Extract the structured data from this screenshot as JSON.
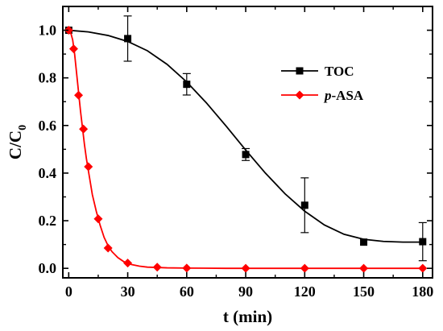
{
  "chart_data": {
    "type": "scatter",
    "xlabel": "t (min)",
    "ylabel": {
      "main": "C/C",
      "sub": "0"
    },
    "xlim": [
      -3,
      185
    ],
    "ylim": [
      -0.04,
      1.1
    ],
    "xticks": [
      0,
      30,
      60,
      90,
      120,
      150,
      180
    ],
    "yticks": [
      0.0,
      0.2,
      0.4,
      0.6,
      0.8,
      1.0
    ],
    "xtick_labels": [
      "0",
      "30",
      "60",
      "90",
      "120",
      "150",
      "180"
    ],
    "ytick_labels": [
      "0.0",
      "0.2",
      "0.4",
      "0.6",
      "0.8",
      "1.0"
    ],
    "legend_position": "top-right",
    "series": [
      {
        "name": "TOC",
        "name_parts": {
          "italic": "",
          "rest": "TOC"
        },
        "marker": "square",
        "color": "#000000",
        "points": [
          {
            "x": 0,
            "y": 1.0,
            "err": 0
          },
          {
            "x": 30,
            "y": 0.965,
            "err": 0.095
          },
          {
            "x": 60,
            "y": 0.773,
            "err": 0.045
          },
          {
            "x": 90,
            "y": 0.478,
            "err": 0.025
          },
          {
            "x": 120,
            "y": 0.265,
            "err": 0.115
          },
          {
            "x": 150,
            "y": 0.11,
            "err": 0
          },
          {
            "x": 180,
            "y": 0.112,
            "err": 0.08
          }
        ],
        "fit_curve": [
          [
            0,
            1.0
          ],
          [
            10,
            0.993
          ],
          [
            20,
            0.978
          ],
          [
            30,
            0.953
          ],
          [
            40,
            0.914
          ],
          [
            50,
            0.857
          ],
          [
            60,
            0.783
          ],
          [
            70,
            0.695
          ],
          [
            80,
            0.598
          ],
          [
            90,
            0.497
          ],
          [
            100,
            0.4
          ],
          [
            110,
            0.313
          ],
          [
            120,
            0.24
          ],
          [
            130,
            0.182
          ],
          [
            140,
            0.143
          ],
          [
            150,
            0.122
          ],
          [
            160,
            0.113
          ],
          [
            170,
            0.11
          ],
          [
            180,
            0.11
          ]
        ]
      },
      {
        "name": "p-ASA",
        "name_parts": {
          "italic": "p",
          "rest": "-ASA"
        },
        "marker": "diamond",
        "color": "#ff0000",
        "points": [
          {
            "x": 0,
            "y": 1.0
          },
          {
            "x": 2.5,
            "y": 0.922
          },
          {
            "x": 5,
            "y": 0.727
          },
          {
            "x": 7.5,
            "y": 0.585
          },
          {
            "x": 10,
            "y": 0.427
          },
          {
            "x": 15,
            "y": 0.208
          },
          {
            "x": 20,
            "y": 0.085
          },
          {
            "x": 30,
            "y": 0.022
          },
          {
            "x": 45,
            "y": 0.005
          },
          {
            "x": 60,
            "y": 0.001
          },
          {
            "x": 90,
            "y": 0.0
          },
          {
            "x": 120,
            "y": 0.0
          },
          {
            "x": 150,
            "y": 0.0
          },
          {
            "x": 180,
            "y": 0.0
          }
        ],
        "fit_curve": [
          [
            0,
            1.0
          ],
          [
            1,
            0.99
          ],
          [
            2,
            0.96
          ],
          [
            3,
            0.9
          ],
          [
            4,
            0.82
          ],
          [
            5,
            0.74
          ],
          [
            6,
            0.66
          ],
          [
            7,
            0.59
          ],
          [
            8,
            0.52
          ],
          [
            9,
            0.46
          ],
          [
            10,
            0.41
          ],
          [
            11,
            0.36
          ],
          [
            12,
            0.31
          ],
          [
            14,
            0.24
          ],
          [
            16,
            0.18
          ],
          [
            18,
            0.13
          ],
          [
            20,
            0.095
          ],
          [
            22,
            0.07
          ],
          [
            25,
            0.045
          ],
          [
            28,
            0.028
          ],
          [
            32,
            0.016
          ],
          [
            36,
            0.009
          ],
          [
            40,
            0.005
          ],
          [
            50,
            0.002
          ],
          [
            60,
            0.001
          ],
          [
            80,
            0.0
          ],
          [
            120,
            0.0
          ],
          [
            180,
            0.0
          ]
        ]
      }
    ]
  }
}
